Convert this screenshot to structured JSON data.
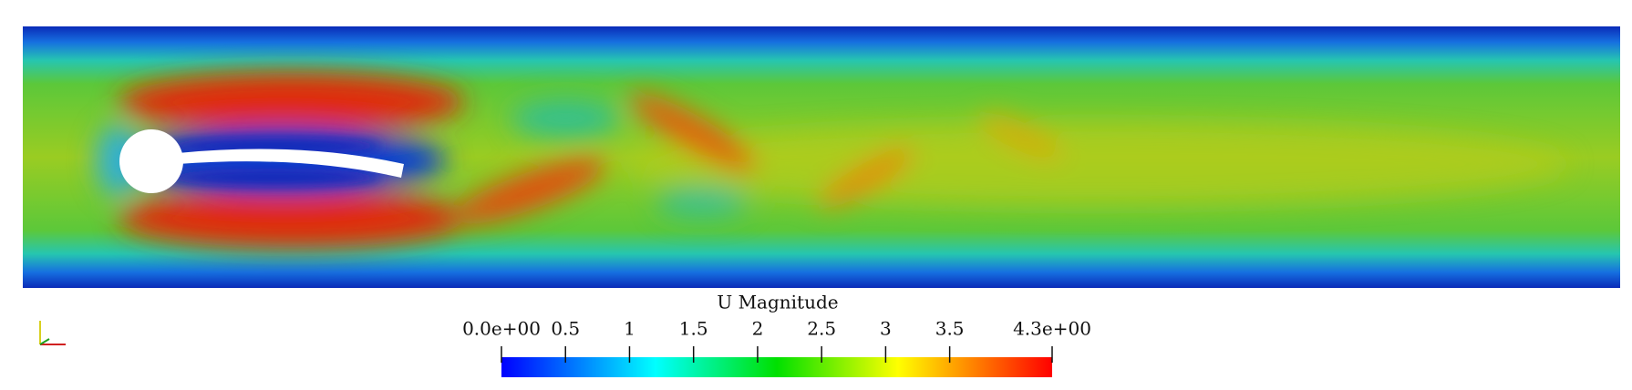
{
  "colorbar": {
    "title": "U Magnitude",
    "range": [
      0,
      4.3
    ],
    "ticks": [
      {
        "value": 0,
        "label": "0.0e+00"
      },
      0.5,
      1,
      1.5,
      2,
      2.5,
      3,
      3.5,
      {
        "value": 4.3,
        "label": "4.3e+00"
      }
    ]
  }
}
